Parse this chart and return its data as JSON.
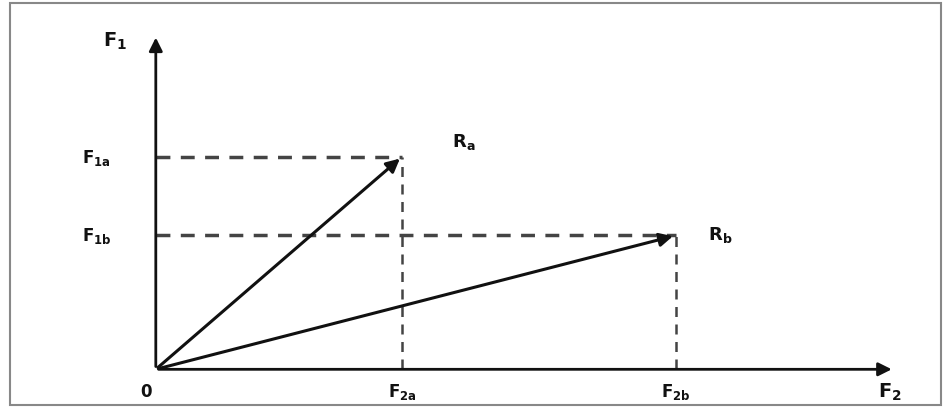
{
  "background_color": "#ffffff",
  "border_color": "#888888",
  "xlim": [
    0,
    10
  ],
  "ylim": [
    0,
    10
  ],
  "ox": 1.5,
  "oy": 0.8,
  "axis_x_end_x": 9.6,
  "axis_y_end_y": 9.3,
  "F2a_x": 4.2,
  "F2b_x": 7.2,
  "F1a_y": 6.2,
  "F1b_y": 4.2,
  "arrow_color": "#111111",
  "dot_line_color": "#444444",
  "text_color": "#111111",
  "fontsize_axis": 14,
  "fontsize_labels": 12
}
